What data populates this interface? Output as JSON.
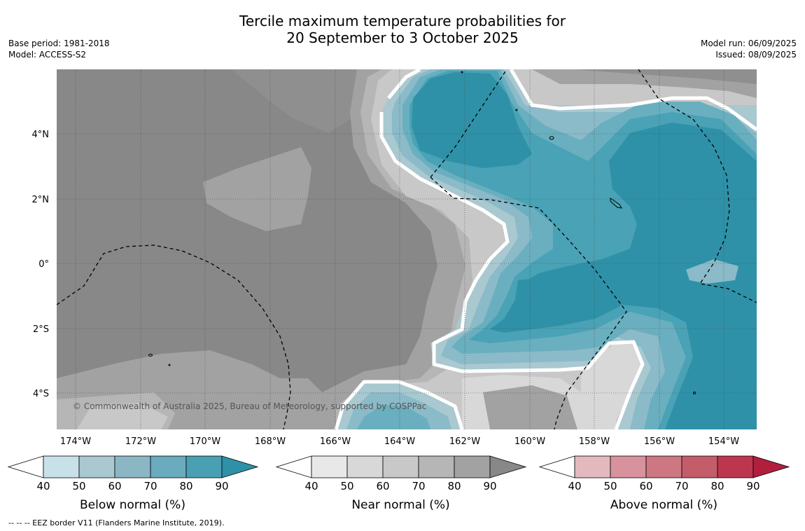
{
  "title": {
    "line1": "Tercile maximum temperature probabilities for",
    "line2": "20 September to 3 October 2025"
  },
  "meta_left": {
    "base_period": "Base period: 1981-2018",
    "model": "Model: ACCESS-S2"
  },
  "meta_right": {
    "model_run": "Model run: 06/09/2025",
    "issued": "Issued: 08/09/2025"
  },
  "map": {
    "copyright": "© Commonwealth of Australia 2025, Bureau of Meteorology, supported by COSPPac",
    "lat_labels": [
      "4°N",
      "2°N",
      "0°",
      "2°S",
      "4°S"
    ],
    "lon_labels": [
      "174°W",
      "172°W",
      "170°W",
      "168°W",
      "166°W",
      "164°W",
      "162°W",
      "160°W",
      "158°W",
      "156°W",
      "154°W"
    ],
    "colors": {
      "near_dark": "#888888",
      "near_mid": "#a2a2a2",
      "near_light": "#b6b6b6",
      "near_lighter": "#c8c8c8",
      "near_lightest": "#d8d8d8",
      "below_90": "#2e91a8",
      "below_80": "#49a2b5",
      "below_70": "#6aafbf",
      "below_60": "#8bbac8",
      "below_50": "#a9c8d0"
    }
  },
  "colorbars": [
    {
      "label": "Below normal (%)",
      "ticks": [
        "40",
        "50",
        "60",
        "70",
        "80",
        "90"
      ],
      "colors": [
        "#c8e1e8",
        "#a9c8d0",
        "#8bb7c5",
        "#6aabbd",
        "#49a0b3",
        "#2e91a8"
      ]
    },
    {
      "label": "Near normal (%)",
      "ticks": [
        "40",
        "50",
        "60",
        "70",
        "80",
        "90"
      ],
      "colors": [
        "#e8e8e8",
        "#d8d8d8",
        "#c8c8c8",
        "#b6b6b6",
        "#a2a2a2",
        "#888888"
      ]
    },
    {
      "label": "Above normal (%)",
      "ticks": [
        "40",
        "50",
        "60",
        "70",
        "80",
        "90"
      ],
      "colors": [
        "#e4b8bf",
        "#d7929d",
        "#cd7782",
        "#c45d6a",
        "#bc3650",
        "#b11f3d"
      ]
    }
  ],
  "footer": "--  --  -- EEZ border V11 (Flanders Marine Institute, 2019)."
}
